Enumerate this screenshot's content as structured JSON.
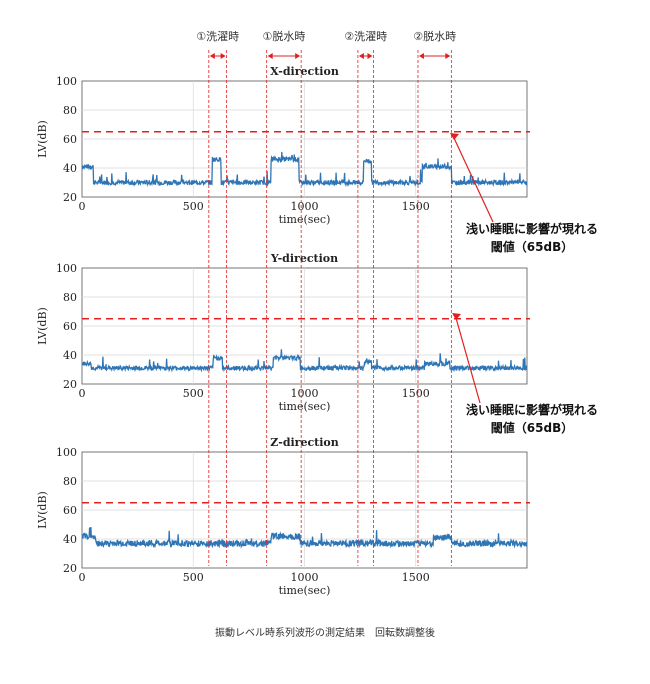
{
  "caption": "振動レベル時系列波形の測定結果　回転数調整後",
  "phase_labels": [
    {
      "label": "①洗濯時",
      "start": 570,
      "end": 650
    },
    {
      "label": "①脱水時",
      "start": 830,
      "end": 985
    },
    {
      "label": "②洗濯時",
      "start": 1240,
      "end": 1310
    },
    {
      "label": "②脱水時",
      "start": 1510,
      "end": 1660
    }
  ],
  "annotation": {
    "line1": "浅い睡眠に影響が現れる",
    "line2": "閾値（65dB）",
    "threshold": 65
  },
  "colors": {
    "series": "#2e75b6",
    "threshold": "#e02020",
    "phase": "#e02020"
  },
  "chart_data": [
    {
      "type": "line",
      "title": "X-direction",
      "xlabel": "time(sec)",
      "ylabel": "LV(dB)",
      "xlim": [
        0,
        2000
      ],
      "ylim": [
        20,
        100
      ],
      "xticks": [
        0,
        500,
        1000,
        1500
      ],
      "yticks": [
        20,
        40,
        60,
        80,
        100
      ],
      "grid": true,
      "threshold": 65,
      "baseline": 30,
      "noise": 1.6,
      "segments": [
        {
          "start": 0,
          "end": 50,
          "level": 41
        },
        {
          "start": 585,
          "end": 625,
          "level": 46
        },
        {
          "start": 850,
          "end": 975,
          "level": 46
        },
        {
          "start": 1265,
          "end": 1300,
          "level": 45
        },
        {
          "start": 1530,
          "end": 1660,
          "level": 41
        }
      ]
    },
    {
      "type": "line",
      "title": "Y-direction",
      "xlabel": "time(sec)",
      "ylabel": "LV(dB)",
      "xlim": [
        0,
        2000
      ],
      "ylim": [
        20,
        100
      ],
      "xticks": [
        0,
        500,
        1000,
        1500
      ],
      "yticks": [
        20,
        40,
        60,
        80,
        100
      ],
      "grid": true,
      "threshold": 65,
      "baseline": 31,
      "noise": 1.5,
      "segments": [
        {
          "start": 0,
          "end": 40,
          "level": 34
        },
        {
          "start": 590,
          "end": 630,
          "level": 38
        },
        {
          "start": 860,
          "end": 980,
          "level": 38
        },
        {
          "start": 1270,
          "end": 1300,
          "level": 35
        },
        {
          "start": 1540,
          "end": 1650,
          "level": 34
        }
      ]
    },
    {
      "type": "line",
      "title": "Z-direction",
      "xlabel": "time(sec)",
      "ylabel": "LV(dB)",
      "xlim": [
        0,
        2000
      ],
      "ylim": [
        20,
        100
      ],
      "xticks": [
        0,
        500,
        1000,
        1500
      ],
      "yticks": [
        20,
        40,
        60,
        80,
        100
      ],
      "grid": true,
      "threshold": 65,
      "baseline": 37,
      "noise": 2.2,
      "segments": [
        {
          "start": 0,
          "end": 60,
          "level": 42
        },
        {
          "start": 850,
          "end": 980,
          "level": 42
        },
        {
          "start": 1580,
          "end": 1660,
          "level": 41
        }
      ]
    }
  ]
}
